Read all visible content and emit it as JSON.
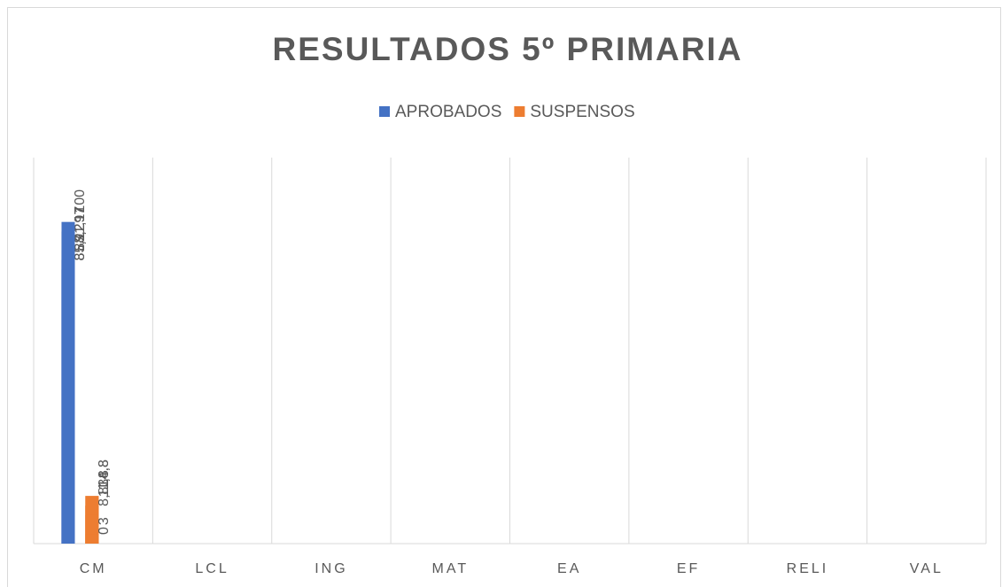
{
  "chart_data": {
    "type": "bar",
    "title": "RESULTADOS 5º PRIMARIA",
    "categories": [
      "CM",
      "LCL",
      "ING",
      "MAT",
      "EA",
      "EF",
      "RELI",
      "VAL"
    ],
    "series": [
      {
        "name": "APROBADOS",
        "color": "#4472c4",
        "values": [
          88.2,
          88.2,
          85.2,
          85.2,
          91.17,
          97,
          100,
          97
        ],
        "value_labels": [
          "88,2",
          "88,2",
          "85,2",
          "85,2",
          "91,17",
          "97",
          "100",
          "97"
        ]
      },
      {
        "name": "SUSPENSOS",
        "color": "#ed7d31",
        "values": [
          11.8,
          11.8,
          14.8,
          14.8,
          8.83,
          3,
          0,
          null
        ],
        "value_labels": [
          "11,8",
          "11,8",
          "14,8",
          "14,8",
          "8,83",
          "3",
          "0",
          null
        ]
      }
    ],
    "ylim": [
      0,
      120
    ],
    "grid": true,
    "legend": "top"
  }
}
